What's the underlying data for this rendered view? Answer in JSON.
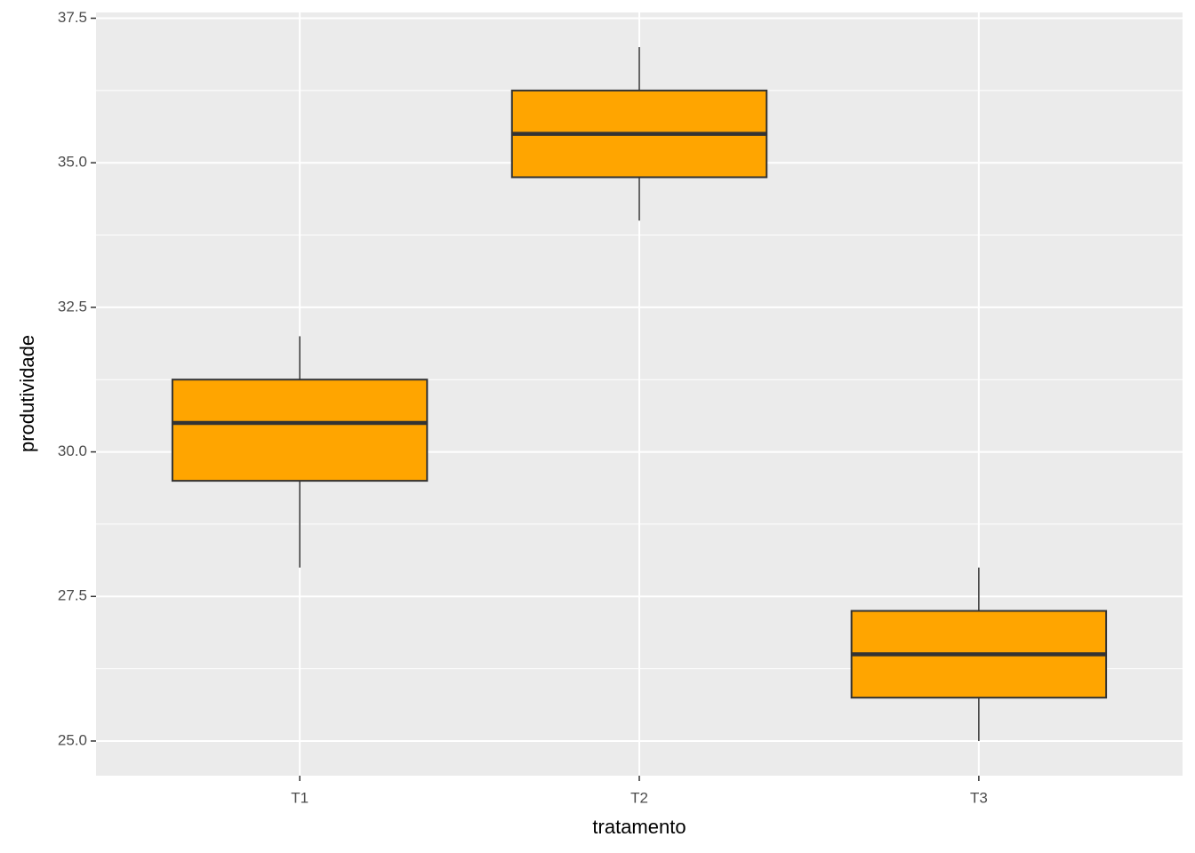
{
  "chart_data": {
    "type": "boxplot",
    "x_label": "tratamento",
    "y_label": "produtividade",
    "categories": [
      "T1",
      "T2",
      "T3"
    ],
    "min": [
      28,
      34,
      25
    ],
    "q1": [
      29.5,
      34.75,
      25.75
    ],
    "median": [
      30.5,
      35.5,
      26.5
    ],
    "q3": [
      31.25,
      36.25,
      27.25
    ],
    "max": [
      32,
      37,
      28
    ],
    "color": "#FFA500",
    "ylim": [
      24.4,
      37.6
    ],
    "yticks": [
      {
        "value": 25,
        "label": "25.0"
      },
      27.5,
      {
        "value": 30,
        "label": "30.0"
      },
      32.5,
      {
        "value": 35,
        "label": "35.0"
      },
      37.5
    ],
    "grid": true
  }
}
